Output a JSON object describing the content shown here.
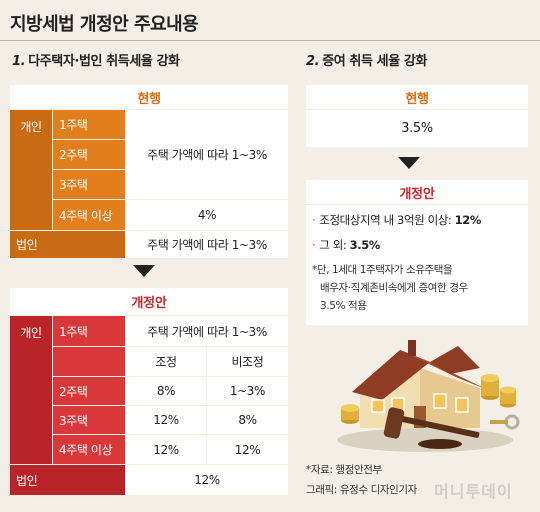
{
  "title": "지방세법 개정안 주요내용",
  "section1": {
    "number": "1.",
    "heading": "다주택자·법인 취득세율 강화",
    "current": {
      "header": "현행",
      "individual_label": "개인",
      "rows": [
        {
          "label": "1주택"
        },
        {
          "label": "2주택"
        },
        {
          "label": "3주택"
        },
        {
          "label": "4주택 이상",
          "value": "4%"
        }
      ],
      "merged_value": "주택 가액에 따라 1~3%",
      "corporate_label": "법인",
      "corporate_value": "주택 가액에 따라 1~3%"
    },
    "revised": {
      "header": "개정안",
      "individual_label": "개인",
      "one_house_label": "1주택",
      "one_house_value": "주택 가액에 따라 1~3%",
      "col_adjusted": "조정",
      "col_non_adjusted": "비조정",
      "rows": [
        {
          "label": "2주택",
          "adjusted": "8%",
          "non_adjusted": "1~3%"
        },
        {
          "label": "3주택",
          "adjusted": "12%",
          "non_adjusted": "8%"
        },
        {
          "label": "4주택 이상",
          "adjusted": "12%",
          "non_adjusted": "12%"
        }
      ],
      "corporate_label": "법인",
      "corporate_value": "12%"
    }
  },
  "section2": {
    "number": "2.",
    "heading": "증여 취득 세율 강화",
    "current": {
      "header": "현행",
      "value": "3.5%"
    },
    "revised": {
      "header": "개정안",
      "bullets": [
        {
          "text": "조정대상지역 내 3억원 이상:",
          "value": "12%"
        },
        {
          "text": "그 외:",
          "value": "3.5%"
        }
      ],
      "note_lines": [
        "*단, 1세대 1주택자가 소유주택을",
        "배우자·직계존비속에게 증여한 경우",
        "3.5% 적용"
      ]
    }
  },
  "source": "*자료: 행정안전부",
  "graphic_credit": "그래픽: 유정수 디자인기자",
  "watermark": "머니투데이"
}
